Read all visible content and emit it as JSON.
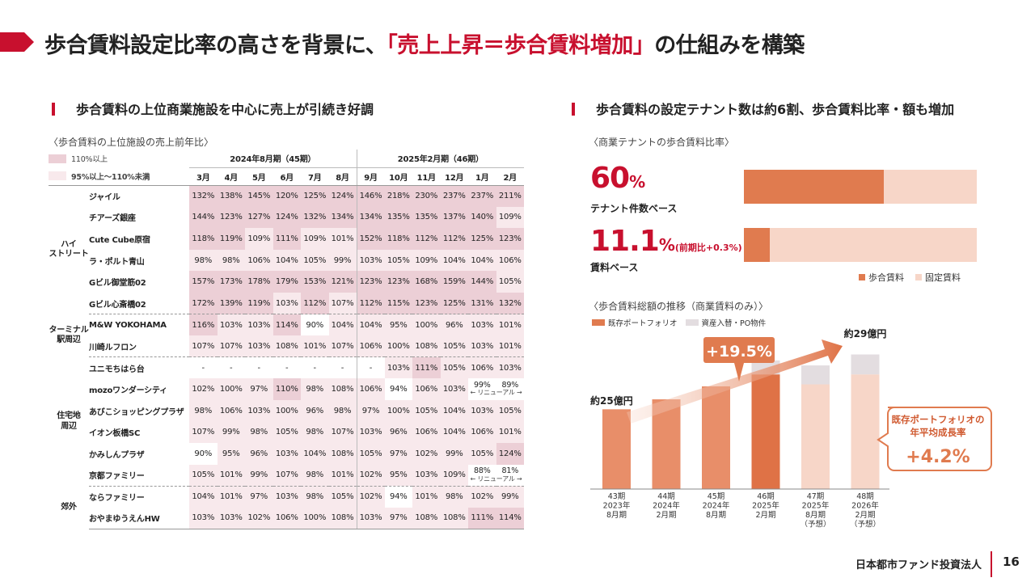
{
  "title": {
    "prefix": "歩合賃料設定比率の高さを背景に、",
    "highlight": "「売上上昇＝歩合賃料増加」",
    "suffix": "の仕組みを構築"
  },
  "left": {
    "heading": "歩合賃料の上位商業施設を中心に売上が引続き好調",
    "subheading": "〈歩合賃料の上位施設の売上前年比〉",
    "legend": [
      {
        "label": "110%以上",
        "color": "#eccfd6"
      },
      {
        "label": "95%以上～110%未満",
        "color": "#f8e9ec"
      }
    ],
    "periods": [
      "2024年8月期（45期）",
      "2025年2月期（46期）"
    ],
    "months": [
      "3月",
      "4月",
      "5月",
      "6月",
      "7月",
      "8月",
      "9月",
      "10月",
      "11月",
      "12月",
      "1月",
      "2月"
    ],
    "groups": [
      {
        "name": "ハイ\nストリート",
        "rows": [
          {
            "name": "ジャイル",
            "values": [
              "132%",
              "138%",
              "145%",
              "120%",
              "125%",
              "124%",
              "146%",
              "218%",
              "230%",
              "237%",
              "237%",
              "211%"
            ]
          },
          {
            "name": "チアーズ銀座",
            "values": [
              "144%",
              "123%",
              "127%",
              "124%",
              "132%",
              "134%",
              "134%",
              "135%",
              "135%",
              "137%",
              "140%",
              "109%"
            ]
          },
          {
            "name": "Cute Cube原宿",
            "values": [
              "118%",
              "119%",
              "109%",
              "111%",
              "109%",
              "101%",
              "152%",
              "118%",
              "112%",
              "112%",
              "125%",
              "123%"
            ]
          },
          {
            "name": "ラ・ポルト青山",
            "values": [
              "98%",
              "98%",
              "106%",
              "104%",
              "105%",
              "99%",
              "103%",
              "105%",
              "109%",
              "104%",
              "104%",
              "106%"
            ]
          },
          {
            "name": "Gビル御堂筋02",
            "values": [
              "157%",
              "173%",
              "178%",
              "179%",
              "153%",
              "121%",
              "123%",
              "123%",
              "168%",
              "159%",
              "144%",
              "105%"
            ]
          },
          {
            "name": "Gビル心斎橋02",
            "values": [
              "172%",
              "139%",
              "119%",
              "103%",
              "112%",
              "107%",
              "112%",
              "115%",
              "123%",
              "125%",
              "131%",
              "132%"
            ]
          }
        ]
      },
      {
        "name": "ターミナル\n駅周辺",
        "rows": [
          {
            "name": "M&W YOKOHAMA",
            "values": [
              "116%",
              "103%",
              "103%",
              "114%",
              "90%",
              "104%",
              "104%",
              "95%",
              "100%",
              "96%",
              "103%",
              "101%"
            ]
          },
          {
            "name": "川崎ルフロン",
            "values": [
              "107%",
              "107%",
              "103%",
              "108%",
              "101%",
              "107%",
              "106%",
              "100%",
              "108%",
              "105%",
              "103%",
              "101%"
            ]
          }
        ]
      },
      {
        "name": "住宅地\n周辺",
        "rows": [
          {
            "name": "ユニモちはら台",
            "values": [
              "-",
              "-",
              "-",
              "-",
              "-",
              "-",
              "-",
              "103%",
              "111%",
              "105%",
              "106%",
              "103%"
            ]
          },
          {
            "name": "mozoワンダーシティ",
            "values": [
              "102%",
              "100%",
              "97%",
              "110%",
              "98%",
              "108%",
              "106%",
              "94%",
              "106%",
              "103%",
              "99%",
              "89%"
            ],
            "note": "← リニューアル →"
          },
          {
            "name": "あびこショッピングプラザ",
            "values": [
              "98%",
              "106%",
              "103%",
              "100%",
              "96%",
              "98%",
              "97%",
              "100%",
              "105%",
              "104%",
              "103%",
              "105%"
            ]
          },
          {
            "name": "イオン板橋SC",
            "values": [
              "107%",
              "99%",
              "98%",
              "105%",
              "98%",
              "107%",
              "103%",
              "96%",
              "106%",
              "104%",
              "106%",
              "101%"
            ]
          },
          {
            "name": "かみしんプラザ",
            "values": [
              "90%",
              "95%",
              "96%",
              "103%",
              "104%",
              "108%",
              "105%",
              "97%",
              "102%",
              "99%",
              "105%",
              "124%"
            ]
          },
          {
            "name": "京都ファミリー",
            "values": [
              "105%",
              "101%",
              "99%",
              "107%",
              "98%",
              "101%",
              "102%",
              "95%",
              "103%",
              "109%",
              "88%",
              "81%"
            ],
            "note": "← リニューアル →"
          }
        ]
      },
      {
        "name": "郊外",
        "rows": [
          {
            "name": "ならファミリー",
            "values": [
              "104%",
              "101%",
              "97%",
              "103%",
              "98%",
              "105%",
              "102%",
              "94%",
              "101%",
              "98%",
              "102%",
              "99%"
            ]
          },
          {
            "name": "おやまゆうえんHW",
            "values": [
              "103%",
              "103%",
              "102%",
              "106%",
              "100%",
              "108%",
              "103%",
              "97%",
              "108%",
              "108%",
              "111%",
              "114%"
            ]
          }
        ]
      }
    ]
  },
  "right": {
    "heading": "歩合賃料の設定テナント数は約6割、歩合賃料比率・額も増加",
    "ratio_subheading": "〈商業テナントの歩合賃料比率〉",
    "ratios": [
      {
        "num": "60",
        "unit": "%",
        "paren": "",
        "basis": "テナント件数ベース",
        "share": 0.6
      },
      {
        "num": "11.1",
        "unit": "%",
        "paren": "(前期比+0.3%)",
        "basis": "賃料ベース",
        "share": 0.111
      }
    ],
    "ratio_legend": [
      {
        "label": "歩合賃料",
        "color": "#e07b4f"
      },
      {
        "label": "固定賃料",
        "color": "#f7d6c8"
      }
    ],
    "trend_subheading": "〈歩合賃料総額の推移（商業賃料のみ）〉",
    "trend_legend": [
      {
        "label": "既存ポートフォリオ",
        "color": "#e07b4f"
      },
      {
        "label": "資産入替・PO物件",
        "color": "#e3dde0"
      }
    ],
    "callout_growth": "+19.5%",
    "label_start": "約25億円",
    "label_end": "約29億円",
    "callout_cagr": {
      "line1": "既存ポートフォリオの",
      "line2": "年平均成長率",
      "value": "+4.2%"
    }
  },
  "chart_data": {
    "type": "bar",
    "title": "〈歩合賃料総額の推移（商業賃料のみ）〉",
    "categories": [
      "43期\n2023年\n8月期",
      "44期\n2024年\n2月期",
      "45期\n2024年\n8月期",
      "46期\n2025年\n2月期",
      "47期\n2025年\n8月期\n（予想）",
      "48期\n2026年\n2月期\n（予想）"
    ],
    "series": [
      {
        "name": "既存ポートフォリオ",
        "values": [
          25.0,
          26.0,
          27.3,
          28.5,
          27.5,
          28.5
        ]
      },
      {
        "name": "資産入替・PO物件",
        "values": [
          0,
          0,
          0,
          1.4,
          1.9,
          2.0
        ]
      }
    ],
    "projected": [
      false,
      false,
      false,
      false,
      true,
      true
    ],
    "ylim": [
      0,
      32
    ],
    "xlabel": "",
    "ylabel": ""
  },
  "footer": {
    "company": "日本都市ファンド投資法人",
    "page": "16"
  }
}
